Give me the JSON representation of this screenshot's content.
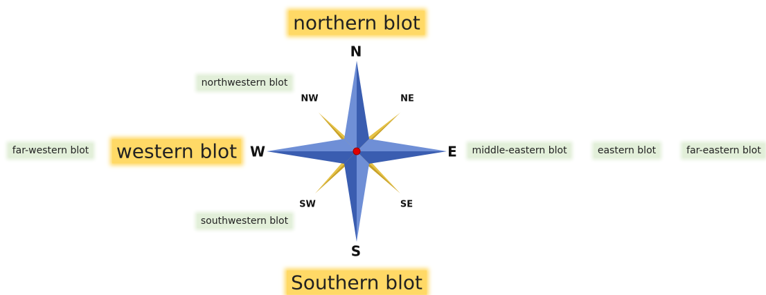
{
  "compass": {
    "n": "N",
    "s": "S",
    "e": "E",
    "w": "W",
    "ne": "NE",
    "nw": "NW",
    "se": "SE",
    "sw": "SW"
  },
  "blots": {
    "northern": "northern blot",
    "southern": "Southern blot",
    "western": "western blot",
    "northwestern": "northwestern blot",
    "southwestern": "southwestern blot",
    "far_western": "far-western blot",
    "middle_eastern": "middle-eastern blot",
    "eastern": "eastern blot",
    "far_eastern": "far-eastern blot"
  }
}
